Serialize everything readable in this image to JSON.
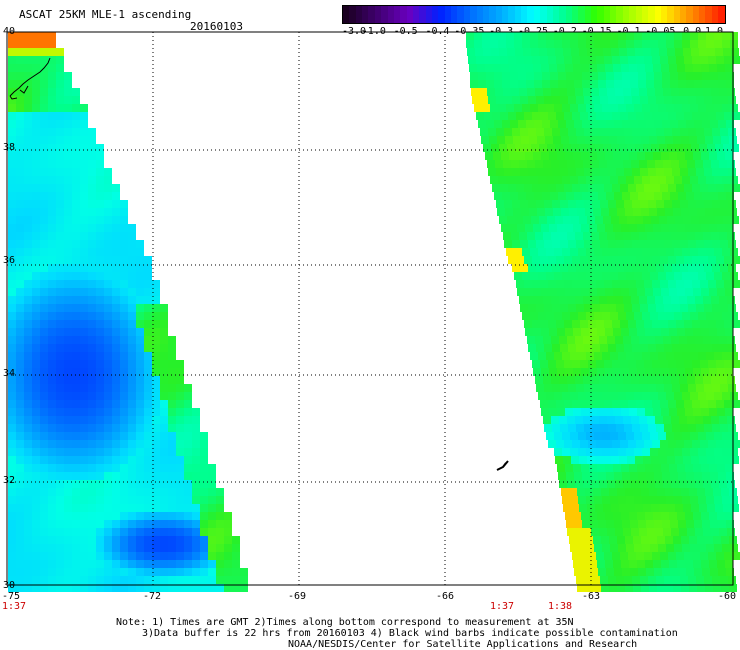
{
  "header": {
    "title": "ASCAT 25KM MLE-1 ascending",
    "date": "20160103"
  },
  "colorbar": {
    "labels": [
      "-3.0",
      "-1.0",
      "-0.5",
      "-0.4",
      "-0.35",
      "-0.3",
      "-0.25",
      "-0.2",
      "-0.15",
      "-0.1",
      "-0.05",
      "0.0",
      "1.0"
    ],
    "colors": [
      "#1a0020",
      "#400070",
      "#6a00c0",
      "#0020ff",
      "#0070ff",
      "#00b0ff",
      "#00ffff",
      "#00ff90",
      "#30ff00",
      "#a0ff00",
      "#ffff00",
      "#ff9000",
      "#ff2000"
    ]
  },
  "axes": {
    "x_ticks": [
      "-75",
      "-72",
      "-69",
      "-66",
      "-63",
      "-60"
    ],
    "y_ticks": [
      "40",
      "38",
      "36",
      "34",
      "32",
      "30"
    ]
  },
  "pass_times": {
    "left": "1:37",
    "right_a": "1:37",
    "right_b": "1:38"
  },
  "notes": {
    "line1": "Note: 1) Times are GMT 2)Times along bottom correspond to measurement at 35N",
    "line2": "3)Data buffer is 22 hrs from 20160103 4) Black wind barbs indicate possible contamination",
    "line3": "NOAA/NESDIS/Center for Satellite Applications and Research"
  }
}
